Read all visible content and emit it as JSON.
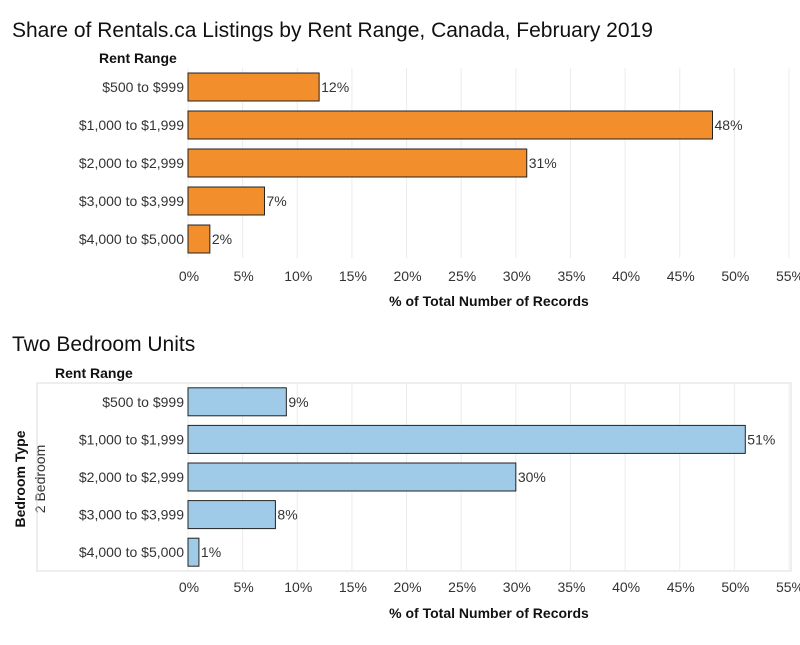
{
  "chart_data": [
    {
      "type": "bar",
      "orientation": "horizontal",
      "title": "Share of Rentals.ca Listings by Rent Range, Canada, February 2019",
      "row_header": "Rent Range",
      "categories": [
        "$500 to $999",
        "$1,000 to $1,999",
        "$2,000 to $2,999",
        "$3,000 to $3,999",
        "$4,000 to $5,000"
      ],
      "values": [
        12,
        48,
        31,
        7,
        2
      ],
      "value_labels": [
        "12%",
        "48%",
        "31%",
        "7%",
        "2%"
      ],
      "xlabel": "% of Total Number of Records",
      "xticks": [
        "0%",
        "5%",
        "10%",
        "15%",
        "20%",
        "25%",
        "30%",
        "35%",
        "40%",
        "45%",
        "50%",
        "55%"
      ],
      "xlim": [
        0,
        55
      ],
      "color": "#F28E2B"
    },
    {
      "type": "bar",
      "orientation": "horizontal",
      "title": "Two Bedroom Units",
      "row_header": "Rent Range",
      "side_header": "Bedroom Type",
      "side_value": "2 Bedroom",
      "categories": [
        "$500 to $999",
        "$1,000 to $1,999",
        "$2,000 to $2,999",
        "$3,000 to $3,999",
        "$4,000 to $5,000"
      ],
      "values": [
        9,
        51,
        30,
        8,
        1
      ],
      "value_labels": [
        "9%",
        "51%",
        "30%",
        "8%",
        "1%"
      ],
      "xlabel": "% of Total Number of Records",
      "xticks": [
        "0%",
        "5%",
        "10%",
        "15%",
        "20%",
        "25%",
        "30%",
        "35%",
        "40%",
        "45%",
        "50%",
        "55%"
      ],
      "xlim": [
        0,
        55
      ],
      "color": "#A0CBE8"
    }
  ]
}
